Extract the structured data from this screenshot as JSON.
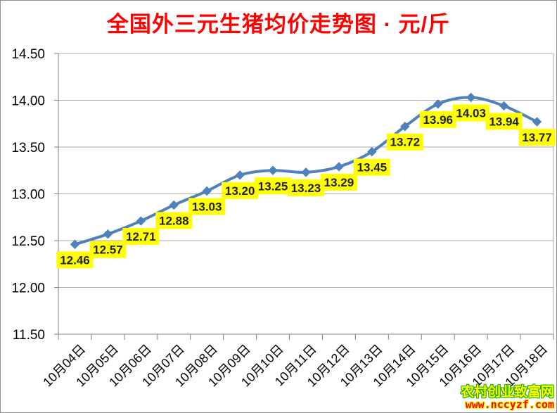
{
  "header": {
    "title": "全国外三元生猪均价走势图 · 元/斤",
    "title_color": "#FF0000"
  },
  "chart_data": {
    "type": "line",
    "title": "全国外三元生猪均价走势图 · 元/斤",
    "unit": "元/斤",
    "categories": [
      "10月04日",
      "10月05日",
      "10月06日",
      "10月07日",
      "10月08日",
      "10月09日",
      "10月10日",
      "10月11日",
      "10月12日",
      "10月13日",
      "10月14日",
      "10月15日",
      "10月16日",
      "10月17日",
      "10月18日"
    ],
    "values": [
      12.46,
      12.57,
      12.71,
      12.88,
      13.03,
      13.2,
      13.25,
      13.23,
      13.29,
      13.45,
      13.72,
      13.96,
      14.03,
      13.94,
      13.77
    ],
    "labels": [
      "12.46",
      "12.57",
      "12.71",
      "12.88",
      "13.03",
      "13.20",
      "13.25",
      "13.23",
      "13.29",
      "13.45",
      "13.72",
      "13.96",
      "14.03",
      "13.94",
      "13.77"
    ],
    "ylim": [
      11.5,
      14.5
    ],
    "yticks": [
      "14.50",
      "14.00",
      "13.50",
      "13.00",
      "12.50",
      "12.00",
      "11.50"
    ],
    "grid": true,
    "legend": "none",
    "line_color": "#4F81BD",
    "marker": "diamond",
    "label_bg": "#FFFF00",
    "label_text_color": "#1f1f1f",
    "grid_color": "#ababab",
    "axis_color": "#808080",
    "axis_text_color": "#000000"
  },
  "watermark": {
    "site_name": "农村创业致富网",
    "site_url": "www.nccyzf.com",
    "name_fill": "#FFFF00",
    "name_outline": "#1cae00",
    "url_fill": "#FF0000",
    "url_outline": "#FFFF00"
  }
}
